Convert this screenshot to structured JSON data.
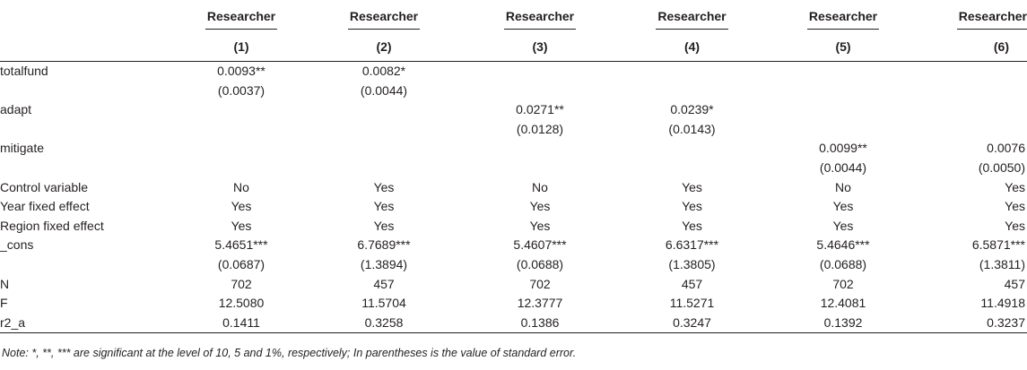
{
  "header": {
    "dep_vars": [
      "Researcher",
      "Researcher",
      "Researcher",
      "Researcher",
      "Researcher",
      "Researcher"
    ],
    "col_nums": [
      "(1)",
      "(2)",
      "(3)",
      "(4)",
      "(5)",
      "(6)"
    ]
  },
  "rows": [
    {
      "label": "totalfund",
      "cells": [
        "0.0093**",
        "0.0082*",
        "",
        "",
        "",
        ""
      ]
    },
    {
      "label": "",
      "cells": [
        "(0.0037)",
        "(0.0044)",
        "",
        "",
        "",
        ""
      ]
    },
    {
      "label": "adapt",
      "cells": [
        "",
        "",
        "0.0271**",
        "0.0239*",
        "",
        ""
      ]
    },
    {
      "label": "",
      "cells": [
        "",
        "",
        "(0.0128)",
        "(0.0143)",
        "",
        ""
      ]
    },
    {
      "label": "mitigate",
      "cells": [
        "",
        "",
        "",
        "",
        "0.0099**",
        "0.0076"
      ]
    },
    {
      "label": "",
      "cells": [
        "",
        "",
        "",
        "",
        "(0.0044)",
        "(0.0050)"
      ]
    },
    {
      "label": "Control variable",
      "cells": [
        "No",
        "Yes",
        "No",
        "Yes",
        "No",
        "Yes"
      ]
    },
    {
      "label": "Year fixed effect",
      "cells": [
        "Yes",
        "Yes",
        "Yes",
        "Yes",
        "Yes",
        "Yes"
      ]
    },
    {
      "label": "Region fixed effect",
      "cells": [
        "Yes",
        "Yes",
        "Yes",
        "Yes",
        "Yes",
        "Yes"
      ]
    },
    {
      "label": "_cons",
      "cells": [
        "5.4651***",
        "6.7689***",
        "5.4607***",
        "6.6317***",
        "5.4646***",
        "6.5871***"
      ]
    },
    {
      "label": "",
      "cells": [
        "(0.0687)",
        "(1.3894)",
        "(0.0688)",
        "(1.3805)",
        "(0.0688)",
        "(1.3811)"
      ]
    },
    {
      "label": "N",
      "cells": [
        "702",
        "457",
        "702",
        "457",
        "702",
        "457"
      ]
    },
    {
      "label": "F",
      "cells": [
        "12.5080",
        "11.5704",
        "12.3777",
        "11.5271",
        "12.4081",
        "11.4918"
      ]
    },
    {
      "label": "r2_a",
      "cells": [
        "0.1411",
        "0.3258",
        "0.1386",
        "0.3247",
        "0.1392",
        "0.3237"
      ]
    }
  ],
  "note": "Note: *, **, *** are significant at the level of 10, 5 and 1%, respectively; In parentheses is the value of standard error."
}
